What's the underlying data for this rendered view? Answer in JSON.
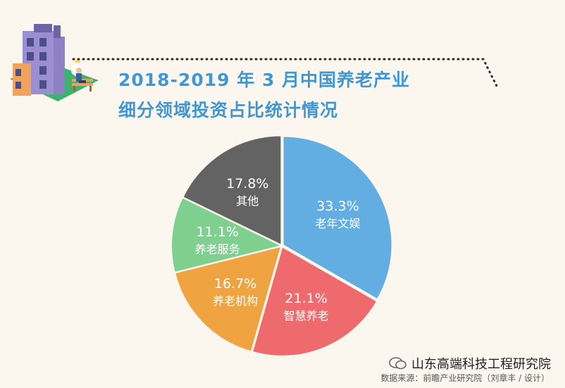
{
  "header": {
    "title_line1": "2018-2019 年 3 月中国养老产业",
    "title_line2": "细分领域投资占比统计情况"
  },
  "colors": {
    "title": "#3f97d3",
    "background": "#fbf7ef",
    "slices": [
      "#62aee2",
      "#ef6a6c",
      "#f0a441",
      "#7fcf8e",
      "#636363"
    ]
  },
  "chart_data": {
    "type": "pie",
    "start_angle_deg": 0,
    "direction": "clockwise",
    "slices": [
      {
        "label": "老年文娱",
        "value": 33.3,
        "value_label": "33.3%"
      },
      {
        "label": "智慧养老",
        "value": 21.1,
        "value_label": "21.1%"
      },
      {
        "label": "养老机构",
        "value": 16.7,
        "value_label": "16.7%"
      },
      {
        "label": "养老服务",
        "value": 11.1,
        "value_label": "11.1%"
      },
      {
        "label": "其他",
        "value": 17.8,
        "value_label": "17.8%"
      }
    ]
  },
  "footer": {
    "watermark": "山东高端科技工程研究院",
    "source": "数据来源：前瞻产业研究院（刘章丰 / 设计）"
  }
}
